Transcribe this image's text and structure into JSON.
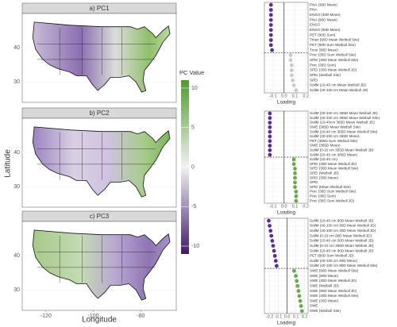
{
  "figure": {
    "ylabel": "Latitude",
    "xlabel": "Longitude"
  },
  "chart_data": [
    {
      "type": "map",
      "title": "a) PC1",
      "xlim": [
        -130,
        -65
      ],
      "ylim": [
        24,
        50
      ],
      "yticks": [
        30,
        40
      ]
    },
    {
      "type": "map",
      "title": "b) PC2",
      "xlim": [
        -130,
        -65
      ],
      "ylim": [
        24,
        50
      ],
      "yticks": [
        30,
        40
      ]
    },
    {
      "type": "map",
      "title": "c) PC3",
      "xlim": [
        -130,
        -65
      ],
      "ylim": [
        24,
        50
      ],
      "yticks": [
        30,
        40
      ],
      "xticks": [
        -120,
        -100,
        -80
      ]
    },
    {
      "type": "colorbar",
      "title": "PC Value",
      "clim": [
        -11,
        11
      ],
      "ticks": [
        -10,
        -5,
        0,
        5,
        10
      ]
    },
    {
      "type": "dot",
      "xlabel": "Loading",
      "xlim": [
        -0.18,
        0.22
      ],
      "xticks": [
        -0.1,
        {
          "value": 0,
          "label": "0.0"
        },
        0.1,
        0.2
      ],
      "colors": {
        "negative": "#5b2f8f",
        "positive": "#c9c9c9"
      },
      "categories": [
        "PNA (30D Mean)",
        "PNA",
        "ENSO (30D Mean)",
        "PNA (90D Mean)",
        "ENSO",
        "ENSO (90D Mean)",
        "PET (90D Sum)",
        "Tmax (90D Mean Weibull Site)",
        "PET (90D Sum Weibull Site)",
        "Tmin (90D Mean)",
        "Prec (30D Sum Weibull Site)",
        "SPEI (30D Mean Weibull Site)",
        "Prec (30D Sum)",
        "SPEI (30D Mean Weibull JD)",
        "SPEI (Weibull Site)",
        "SPEI",
        "SoilM (10-40 cm Mean Weibull JD)",
        "SoilM (40-100 cm Mean Weibull JD)"
      ],
      "values": [
        -0.12,
        -0.12,
        -0.12,
        -0.12,
        -0.12,
        -0.12,
        -0.12,
        -0.12,
        -0.12,
        -0.11,
        0.06,
        0.06,
        0.07,
        0.07,
        0.07,
        0.08,
        0.09,
        0.11
      ]
    },
    {
      "type": "dot",
      "xlabel": "Loading",
      "xlim": [
        -0.18,
        0.22
      ],
      "xticks": [
        -0.1,
        {
          "value": 0,
          "label": "0.0"
        },
        0.1,
        0.2
      ],
      "colors": {
        "negative": "#5b2f8f",
        "positive": "#6aa84f"
      },
      "categories": [
        "SoilM (40-100 cm 365D Mean Weibull JD)",
        "SoilM (40-100 cm 365D Mean Weibull Site)",
        "SoilM (10-40cm 365D Mean Weibull JD)",
        "SWE (365D Mean Weibull Site)",
        "SoilM (10-40 cm 365D Mean Weibull Site)",
        "SoilM (40-100 cm 365D Mean)",
        "PET (365D Sum Weibull Site)",
        "SWE (365D Mean)",
        "SoilM (0-10 cm 365D Mean Weibull JD)",
        "SoilM (10-40 cm 365D Mean)",
        "SoilM (10-40 cm)",
        "SPEI (30D Mean Weibull JD)",
        "SPEI (30D Mean Weibull Site)",
        "SPEI (Weibull JD)",
        "SPEI (30D Mean)",
        "SPEI",
        "SPEI (Mean Weibull Site)",
        "Prec (30D Sum Weibull Site)",
        "Prec (30D Sum)",
        "Prec (30D Sum Weibull JD)"
      ],
      "values": [
        -0.13,
        -0.13,
        -0.13,
        -0.13,
        -0.13,
        -0.13,
        -0.13,
        -0.13,
        -0.13,
        -0.13,
        0.09,
        0.09,
        0.1,
        0.1,
        0.1,
        0.1,
        0.1,
        0.11,
        0.11,
        0.11
      ]
    },
    {
      "type": "dot",
      "xlabel": "Loading",
      "xlim": [
        -0.26,
        0.24
      ],
      "xticks": [
        -0.2,
        -0.1,
        {
          "value": 0,
          "label": "0.0"
        },
        0.1,
        0.2
      ],
      "colors": {
        "negative": "#5b2f8f",
        "positive": "#6aa84f"
      },
      "categories": [
        "SoilM (10-40 cm 90D Mean Weibull JD)",
        "SoilM (40-100 cm 90D Mean Weibull JD)",
        "SoilM (40-100 cm 30D Mean Weibull JD)",
        "SoilM (0-10 cm 90D Mean Weibull JD)",
        "SoilM (10-40 cm 30D Mean Weibull JD)",
        "SoilM (0-10 cm 365D Mean Weibull JD)",
        "SoilM (10-40 cm 90D Mean Weibull JD)",
        "PET (90D Sum Weibull JD)",
        "SoilM (40-100 cm 90D Mean)",
        "SoilM (40-100 cm 90D Mean Weibull Site)",
        "SWE (90D Mean Weibull Site)",
        "SWE (90D Mean)",
        "SWE (30D Mean Weibull JD)",
        "SWE (Weibull JD)",
        "SWE (90D Mean Weibull JD)",
        "SWE (30D Mean Weibull Site)",
        "SWE (30D Mean)",
        "SWE",
        "SWE (Weibull Site)"
      ],
      "values": [
        -0.21,
        -0.2,
        -0.19,
        -0.18,
        -0.17,
        -0.16,
        -0.15,
        -0.14,
        -0.13,
        -0.12,
        0.08,
        0.1,
        0.11,
        0.12,
        0.13,
        0.14,
        0.15,
        0.16,
        0.17
      ]
    }
  ]
}
